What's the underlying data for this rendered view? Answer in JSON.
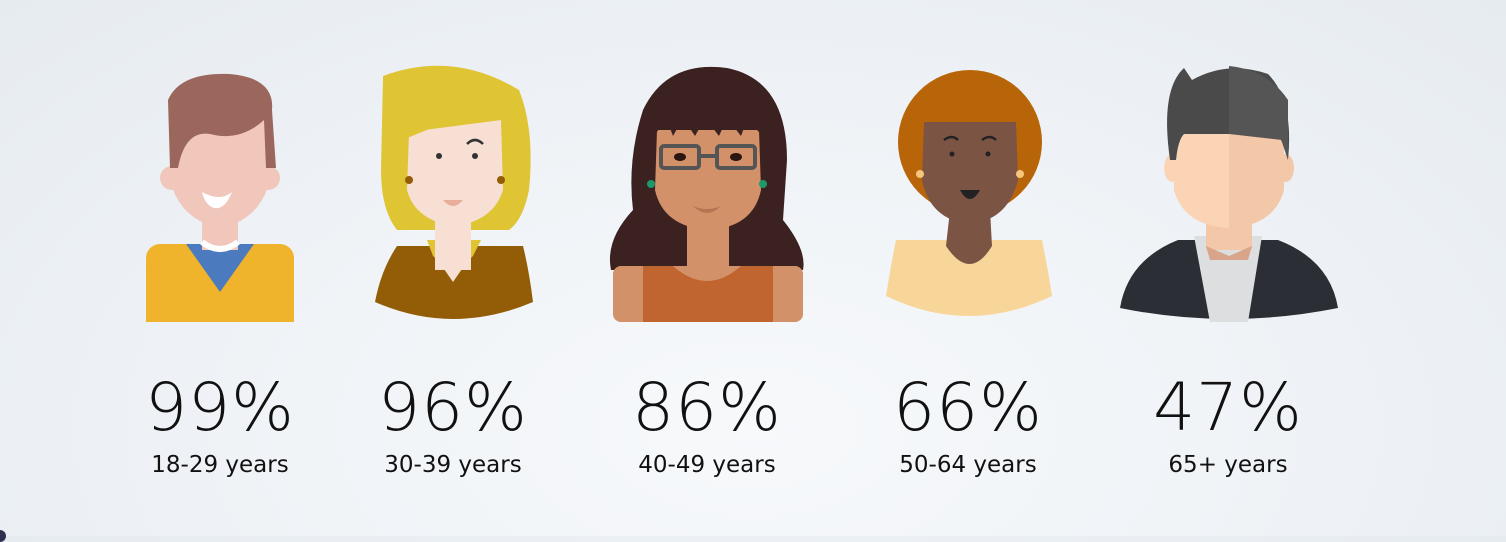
{
  "items": [
    {
      "percent": "99%",
      "label": "18-29 years",
      "avatar": "young-man-avatar"
    },
    {
      "percent": "96%",
      "label": "30-39 years",
      "avatar": "blonde-woman-avatar"
    },
    {
      "percent": "86%",
      "label": "40-49 years",
      "avatar": "woman-with-glasses-avatar"
    },
    {
      "percent": "66%",
      "label": "50-64 years",
      "avatar": "woman-with-afro-avatar"
    },
    {
      "percent": "47%",
      "label": "65+ years",
      "avatar": "man-in-suit-avatar"
    }
  ]
}
